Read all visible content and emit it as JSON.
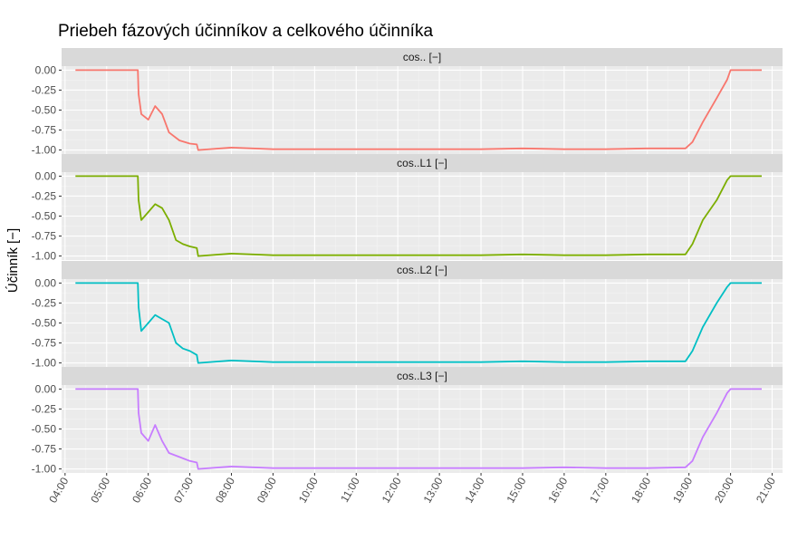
{
  "chart_data": {
    "type": "line",
    "title": "Priebeh fázových účinníkov a celkového účinníka",
    "xlabel": "",
    "ylabel": "Účinník [−]",
    "x_ticks": [
      "04:00",
      "05:00",
      "06:00",
      "07:00",
      "08:00",
      "09:00",
      "10:00",
      "11:00",
      "12:00",
      "13:00",
      "14:00",
      "15:00",
      "16:00",
      "17:00",
      "18:00",
      "19:00",
      "20:00",
      "21:00"
    ],
    "y_ticks": [
      "0.00",
      "-0.25",
      "-0.50",
      "-0.75",
      "-1.00"
    ],
    "xlim": [
      "03:55",
      "21:15"
    ],
    "ylim": [
      -1.05,
      0.05
    ],
    "grid": true,
    "legend": "none",
    "facets": [
      {
        "strip": "cos.. [−]",
        "color": "#F8766D",
        "x": [
          "04:15",
          "05:45",
          "05:46",
          "05:50",
          "06:00",
          "06:10",
          "06:20",
          "06:30",
          "06:45",
          "07:00",
          "07:10",
          "07:12",
          "08:00",
          "09:00",
          "10:00",
          "11:00",
          "12:00",
          "13:00",
          "14:00",
          "15:00",
          "16:00",
          "17:00",
          "18:00",
          "18:55",
          "19:05",
          "19:20",
          "19:40",
          "19:55",
          "20:00",
          "20:45"
        ],
        "values": [
          0.0,
          0.0,
          -0.3,
          -0.55,
          -0.62,
          -0.45,
          -0.55,
          -0.78,
          -0.88,
          -0.92,
          -0.93,
          -1.0,
          -0.97,
          -0.99,
          -0.99,
          -0.99,
          -0.99,
          -0.99,
          -0.99,
          -0.98,
          -0.99,
          -0.99,
          -0.98,
          -0.98,
          -0.9,
          -0.65,
          -0.35,
          -0.12,
          0.0,
          0.0
        ]
      },
      {
        "strip": "cos..L1 [−]",
        "color": "#7CAE00",
        "x": [
          "04:15",
          "05:45",
          "05:46",
          "05:50",
          "06:00",
          "06:10",
          "06:20",
          "06:30",
          "06:40",
          "06:50",
          "07:00",
          "07:10",
          "07:12",
          "08:00",
          "09:00",
          "10:00",
          "11:00",
          "12:00",
          "13:00",
          "14:00",
          "15:00",
          "16:00",
          "17:00",
          "18:00",
          "18:55",
          "19:05",
          "19:20",
          "19:40",
          "19:55",
          "20:00",
          "20:45"
        ],
        "values": [
          0.0,
          0.0,
          -0.3,
          -0.55,
          -0.45,
          -0.35,
          -0.4,
          -0.55,
          -0.8,
          -0.85,
          -0.88,
          -0.9,
          -1.0,
          -0.97,
          -0.99,
          -0.99,
          -0.99,
          -0.99,
          -0.99,
          -0.99,
          -0.98,
          -0.99,
          -0.99,
          -0.98,
          -0.98,
          -0.85,
          -0.55,
          -0.3,
          -0.05,
          0.0,
          0.0
        ]
      },
      {
        "strip": "cos..L2 [−]",
        "color": "#00BFC4",
        "x": [
          "04:15",
          "05:45",
          "05:46",
          "05:50",
          "06:00",
          "06:10",
          "06:20",
          "06:30",
          "06:40",
          "06:50",
          "07:00",
          "07:10",
          "07:12",
          "08:00",
          "09:00",
          "10:00",
          "11:00",
          "12:00",
          "13:00",
          "14:00",
          "15:00",
          "16:00",
          "17:00",
          "18:00",
          "18:55",
          "19:05",
          "19:20",
          "19:40",
          "19:55",
          "20:00",
          "20:45"
        ],
        "values": [
          0.0,
          0.0,
          -0.3,
          -0.6,
          -0.5,
          -0.4,
          -0.45,
          -0.5,
          -0.75,
          -0.82,
          -0.85,
          -0.9,
          -1.0,
          -0.97,
          -0.99,
          -0.99,
          -0.99,
          -0.99,
          -0.99,
          -0.99,
          -0.98,
          -0.99,
          -0.99,
          -0.98,
          -0.98,
          -0.85,
          -0.55,
          -0.25,
          -0.05,
          0.0,
          0.0
        ]
      },
      {
        "strip": "cos..L3 [−]",
        "color": "#C77CFF",
        "x": [
          "04:15",
          "05:45",
          "05:46",
          "05:50",
          "06:00",
          "06:10",
          "06:20",
          "06:30",
          "06:45",
          "07:00",
          "07:10",
          "07:12",
          "08:00",
          "09:00",
          "10:00",
          "11:00",
          "12:00",
          "13:00",
          "14:00",
          "15:00",
          "16:00",
          "17:00",
          "18:00",
          "18:55",
          "19:05",
          "19:20",
          "19:40",
          "19:55",
          "20:00",
          "20:45"
        ],
        "values": [
          0.0,
          0.0,
          -0.3,
          -0.55,
          -0.65,
          -0.45,
          -0.65,
          -0.8,
          -0.85,
          -0.9,
          -0.92,
          -1.0,
          -0.97,
          -0.99,
          -0.99,
          -0.99,
          -0.99,
          -0.99,
          -0.99,
          -0.99,
          -0.98,
          -0.99,
          -0.99,
          -0.98,
          -0.9,
          -0.6,
          -0.3,
          -0.05,
          0.0,
          0.0
        ]
      }
    ]
  }
}
